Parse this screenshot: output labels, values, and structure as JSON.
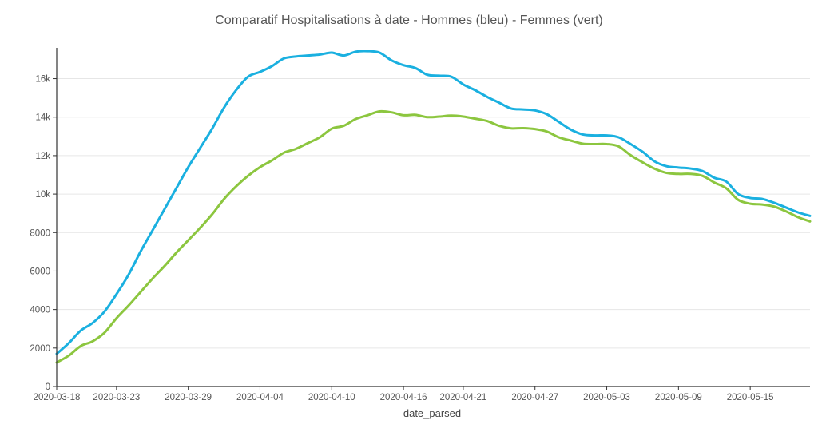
{
  "chart_data": {
    "type": "line",
    "title": "Comparatif Hospitalisations  à date -  Hommes (bleu) - Femmes (vert)",
    "xlabel": "date_parsed",
    "ylabel": "",
    "x_range": [
      "2020-03-18",
      "2020-05-20"
    ],
    "ylim": [
      0,
      17600
    ],
    "x_ticks": [
      "2020-03-18",
      "2020-03-23",
      "2020-03-29",
      "2020-04-04",
      "2020-04-10",
      "2020-04-16",
      "2020-04-21",
      "2020-04-27",
      "2020-05-03",
      "2020-05-09",
      "2020-05-15"
    ],
    "y_ticks": [
      {
        "value": 0,
        "label": "0"
      },
      {
        "value": 2000,
        "label": "2000"
      },
      {
        "value": 4000,
        "label": "4000"
      },
      {
        "value": 6000,
        "label": "6000"
      },
      {
        "value": 8000,
        "label": "8000"
      },
      {
        "value": 10000,
        "label": "10k"
      },
      {
        "value": 12000,
        "label": "12k"
      },
      {
        "value": 14000,
        "label": "14k"
      },
      {
        "value": 16000,
        "label": "16k"
      }
    ],
    "grid": {
      "horizontal": true,
      "vertical": false
    },
    "series": [
      {
        "color": "#1ab0e0",
        "x": [
          "2020-03-18",
          "2020-03-19",
          "2020-03-20",
          "2020-03-21",
          "2020-03-22",
          "2020-03-23",
          "2020-03-24",
          "2020-03-25",
          "2020-03-26",
          "2020-03-27",
          "2020-03-28",
          "2020-03-29",
          "2020-03-30",
          "2020-03-31",
          "2020-04-01",
          "2020-04-02",
          "2020-04-03",
          "2020-04-04",
          "2020-04-05",
          "2020-04-06",
          "2020-04-07",
          "2020-04-08",
          "2020-04-09",
          "2020-04-10",
          "2020-04-11",
          "2020-04-12",
          "2020-04-13",
          "2020-04-14",
          "2020-04-15",
          "2020-04-16",
          "2020-04-17",
          "2020-04-18",
          "2020-04-19",
          "2020-04-20",
          "2020-04-21",
          "2020-04-22",
          "2020-04-23",
          "2020-04-24",
          "2020-04-25",
          "2020-04-26",
          "2020-04-27",
          "2020-04-28",
          "2020-04-29",
          "2020-04-30",
          "2020-05-01",
          "2020-05-02",
          "2020-05-03",
          "2020-05-04",
          "2020-05-05",
          "2020-05-06",
          "2020-05-07",
          "2020-05-08",
          "2020-05-09",
          "2020-05-10",
          "2020-05-11",
          "2020-05-12",
          "2020-05-13",
          "2020-05-14",
          "2020-05-15",
          "2020-05-16",
          "2020-05-17",
          "2020-05-18",
          "2020-05-19",
          "2020-05-20"
        ],
        "values": [
          1700,
          2250,
          2900,
          3300,
          3900,
          4800,
          5800,
          7000,
          8100,
          9200,
          10300,
          11400,
          12400,
          13400,
          14500,
          15400,
          16100,
          16350,
          16650,
          17050,
          17150,
          17200,
          17250,
          17350,
          17200,
          17400,
          17430,
          17350,
          16950,
          16700,
          16550,
          16200,
          16150,
          16100,
          15700,
          15400,
          15050,
          14750,
          14450,
          14400,
          14350,
          14150,
          13750,
          13350,
          13100,
          13050,
          13050,
          12950,
          12600,
          12200,
          11700,
          11450,
          11380,
          11330,
          11200,
          10850,
          10650,
          10000,
          9800,
          9750,
          9550,
          9300,
          9050,
          8870
        ]
      },
      {
        "color": "#8cc63f",
        "x": [
          "2020-03-18",
          "2020-03-19",
          "2020-03-20",
          "2020-03-21",
          "2020-03-22",
          "2020-03-23",
          "2020-03-24",
          "2020-03-25",
          "2020-03-26",
          "2020-03-27",
          "2020-03-28",
          "2020-03-29",
          "2020-03-30",
          "2020-03-31",
          "2020-04-01",
          "2020-04-02",
          "2020-04-03",
          "2020-04-04",
          "2020-04-05",
          "2020-04-06",
          "2020-04-07",
          "2020-04-08",
          "2020-04-09",
          "2020-04-10",
          "2020-04-11",
          "2020-04-12",
          "2020-04-13",
          "2020-04-14",
          "2020-04-15",
          "2020-04-16",
          "2020-04-17",
          "2020-04-18",
          "2020-04-19",
          "2020-04-20",
          "2020-04-21",
          "2020-04-22",
          "2020-04-23",
          "2020-04-24",
          "2020-04-25",
          "2020-04-26",
          "2020-04-27",
          "2020-04-28",
          "2020-04-29",
          "2020-04-30",
          "2020-05-01",
          "2020-05-02",
          "2020-05-03",
          "2020-05-04",
          "2020-05-05",
          "2020-05-06",
          "2020-05-07",
          "2020-05-08",
          "2020-05-09",
          "2020-05-10",
          "2020-05-11",
          "2020-05-12",
          "2020-05-13",
          "2020-05-14",
          "2020-05-15",
          "2020-05-16",
          "2020-05-17",
          "2020-05-18",
          "2020-05-19",
          "2020-05-20"
        ],
        "values": [
          1250,
          1600,
          2100,
          2350,
          2800,
          3550,
          4200,
          4900,
          5600,
          6250,
          6950,
          7600,
          8250,
          8950,
          9750,
          10400,
          10950,
          11400,
          11750,
          12150,
          12350,
          12650,
          12950,
          13400,
          13550,
          13900,
          14100,
          14300,
          14250,
          14100,
          14120,
          14000,
          14030,
          14080,
          14030,
          13920,
          13800,
          13550,
          13420,
          13430,
          13380,
          13250,
          12950,
          12780,
          12620,
          12600,
          12600,
          12480,
          12020,
          11650,
          11320,
          11100,
          11050,
          11050,
          10950,
          10600,
          10300,
          9700,
          9500,
          9460,
          9350,
          9100,
          8800,
          8580
        ]
      }
    ]
  }
}
